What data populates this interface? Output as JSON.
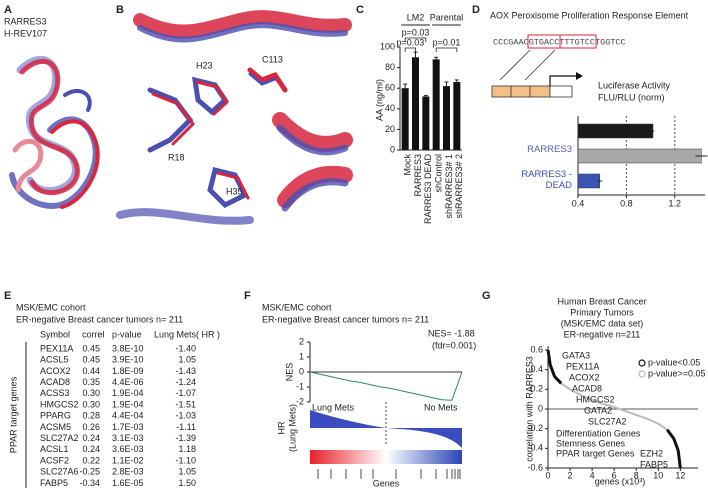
{
  "panel_labels": [
    "A",
    "B",
    "C",
    "D",
    "E",
    "F",
    "G"
  ],
  "panel_a": {
    "legend": [
      {
        "text": "RARRES3",
        "color": "#d7263d"
      },
      {
        "text": "H-REV107",
        "color": "#4a4fb0"
      }
    ]
  },
  "panel_b": {
    "labels": [
      "H23",
      "C113",
      "R18",
      "H35"
    ]
  },
  "chart_data": [
    {
      "type": "bar",
      "ylabel": "AA (ng/ml)",
      "groups": [
        "LM2",
        "Parental"
      ],
      "annotations": [
        "p=0.03",
        "p=0.03",
        "p=0.01"
      ],
      "categories": [
        "Mock",
        "RARRES3",
        "RARRES3 DEAD",
        "shControl",
        "shRARRES3# 1",
        "shRARRES3# 2"
      ],
      "values": [
        60,
        90,
        52,
        88,
        62,
        66
      ],
      "errors": [
        4,
        5,
        1,
        2,
        4,
        2
      ],
      "color": "#111111",
      "ylim": [
        0,
        100
      ],
      "yticks": [
        0,
        20,
        40,
        60,
        80,
        100
      ]
    },
    {
      "type": "barh",
      "title": "AOX Peroxisome Proliferation Response Element",
      "sequence": "CCCGAACGTGACCTTTGTCCTGGTCC",
      "xlabel_lines": [
        "Luciferase Activity",
        "FLU/RLU (norm)"
      ],
      "categories": [
        null,
        "RARRES3",
        "RARRES3 -DEAD"
      ],
      "values": [
        1.02,
        1.42,
        0.58
      ],
      "errors": [
        0.01,
        0.05,
        0.02
      ],
      "colors": [
        "#1a1a1a",
        "#a8a8a8",
        "#3a55b4"
      ],
      "label_colors": [
        null,
        "#5a5aa8",
        "#3a4fb0"
      ],
      "xlim": [
        0.4,
        1.45
      ],
      "xticks": [
        0.4,
        0.8,
        1.2
      ],
      "grid": "dashed"
    },
    {
      "type": "line",
      "title_lines": [
        "MSK/EMC cohort",
        "ER-negative Breast cancer tumors n= 211"
      ],
      "annotations": [
        "NES= -1.88",
        "(fdr=0.001)",
        "Lung Mets",
        "No Mets"
      ],
      "ylabel": "NES",
      "hr_label": [
        "HR",
        "(Lung Mets)"
      ],
      "xlabel": "Genes",
      "color": "#2e8b57",
      "values": [
        0,
        -0.15,
        -0.3,
        -0.45,
        -0.6,
        -0.7,
        -0.85,
        -1,
        -1.1,
        -1.25,
        -1.4,
        -1.55,
        -1.7,
        -1.85,
        -1.88,
        0
      ],
      "ylim": [
        -2,
        2
      ],
      "yticks": [
        2,
        1,
        0,
        -1,
        -2
      ]
    },
    {
      "type": "line",
      "title_lines": [
        "Human Breast Cancer",
        "Primary Tumors",
        "(MSK/EMC data set)",
        "ER-negative n=211"
      ],
      "ylabel": "correlation with RARRES3",
      "xlabel": "genes (x10³)",
      "x": [
        0,
        0.2,
        0.6,
        1.2,
        2,
        3,
        4,
        5,
        6,
        7,
        8,
        9,
        10,
        10.8,
        11.4,
        11.8,
        12
      ],
      "series": [
        {
          "name": "p-value<0.05",
          "color": "#111111",
          "values": [
            0.6,
            0.45,
            0.33,
            0.26,
            null,
            null,
            null,
            null,
            null,
            null,
            null,
            null,
            null,
            -0.21,
            -0.3,
            -0.42,
            -0.6
          ]
        },
        {
          "name": "p-value>=0.05",
          "color": "#bbbbbb",
          "values": [
            null,
            null,
            null,
            0.26,
            0.2,
            0.14,
            0.09,
            0.05,
            0.02,
            -0.02,
            -0.06,
            -0.1,
            -0.15,
            -0.21,
            null,
            null,
            null
          ]
        }
      ],
      "gene_labels": [
        {
          "text": "GATA3",
          "color": "#d7263d"
        },
        {
          "text": "PEX11A",
          "color": "#111111"
        },
        {
          "text": "ACOX2",
          "color": "#111111"
        },
        {
          "text": "ACAD8",
          "color": "#111111"
        },
        {
          "text": "HMGCS2",
          "color": "#111111"
        },
        {
          "text": "GATA2",
          "color": "#d7263d"
        },
        {
          "text": "SLC27A2",
          "color": "#111111"
        },
        {
          "text": "Differentiation Genes",
          "color": "#d7263d"
        },
        {
          "text": "Stemness Genes",
          "color": "#2aa24a"
        },
        {
          "text": "PPAR target Genes",
          "color": "#111111"
        },
        {
          "text": "EZH2",
          "color": "#2aa24a"
        },
        {
          "text": "FABP5",
          "color": "#111111"
        }
      ],
      "xlim": [
        0,
        13.6
      ],
      "xticks": [
        0,
        2,
        4,
        6,
        8,
        10,
        12
      ],
      "ylim": [
        -0.6,
        0.6
      ],
      "yticks": [
        0.6,
        0.4,
        0.2,
        0,
        -0.2,
        -0.4,
        -0.6
      ]
    }
  ],
  "panel_e": {
    "title_lines": [
      "MSK/EMC cohort",
      "ER-negative Breast cancer tumors n= 211"
    ],
    "side_label": "PPAR target genes",
    "columns": [
      "Symbol",
      "correl",
      "p-value",
      "Lung Mets( HR )"
    ],
    "rows": [
      [
        "PEX11A",
        "0.45",
        "3.8E-10",
        "-1.40"
      ],
      [
        "ACSL5",
        "0.45",
        "3.9E-10",
        "1.05"
      ],
      [
        "ACOX2",
        "0.44",
        "1.8E-09",
        "-1.43"
      ],
      [
        "ACAD8",
        "0.35",
        "4.4E-06",
        "-1.24"
      ],
      [
        "ACSS3",
        "0.30",
        "1.9E-04",
        "-1.07"
      ],
      [
        "HMGCS2",
        "0.30",
        "1.9E-04",
        "-1.51"
      ],
      [
        "PPARG",
        "0.28",
        "4.4E-04",
        "-1.03"
      ],
      [
        "ACSM5",
        "0.26",
        "1.7E-03",
        "-1.11"
      ],
      [
        "SLC27A2",
        "0.24",
        "3.1E-03",
        "-1.39"
      ],
      [
        "ACSL1",
        "0.24",
        "3.6E-03",
        "1.18"
      ],
      [
        "ACSF2",
        "0.22",
        "1.1E-02",
        "-1.10"
      ],
      [
        "SLC27A6",
        "-0.25",
        "2.8E-03",
        "1.05"
      ],
      [
        "FABP5",
        "-0.34",
        "1.6E-05",
        "1.50"
      ]
    ]
  }
}
